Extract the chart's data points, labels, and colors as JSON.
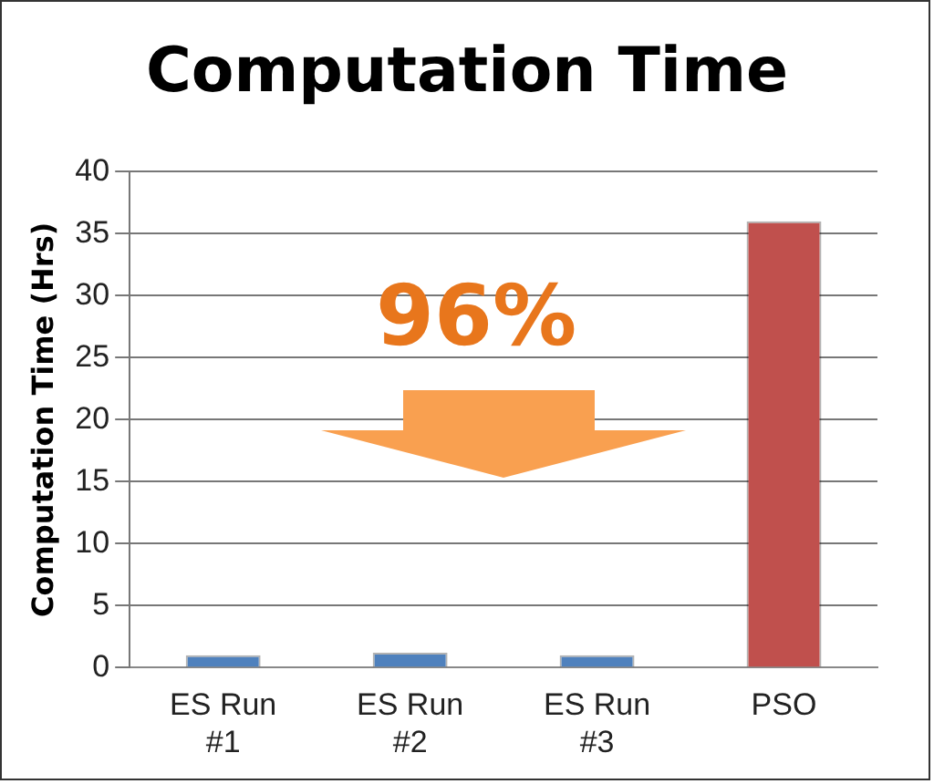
{
  "chart_data": {
    "type": "bar",
    "title": "Computation Time",
    "ylabel": "Computation Time (Hrs)",
    "categories": [
      "ES Run #1",
      "ES Run #2",
      "ES Run #3",
      "PSO"
    ],
    "values": [
      1,
      1.2,
      1,
      36
    ],
    "colors": [
      "#4f81bd",
      "#4f81bd",
      "#4f81bd",
      "#c0504d"
    ],
    "ylim": [
      0,
      40
    ],
    "yticks": [
      0,
      5,
      10,
      15,
      20,
      25,
      30,
      35,
      40
    ],
    "grid": "y",
    "legend": false,
    "annotations": [
      "96%"
    ]
  }
}
